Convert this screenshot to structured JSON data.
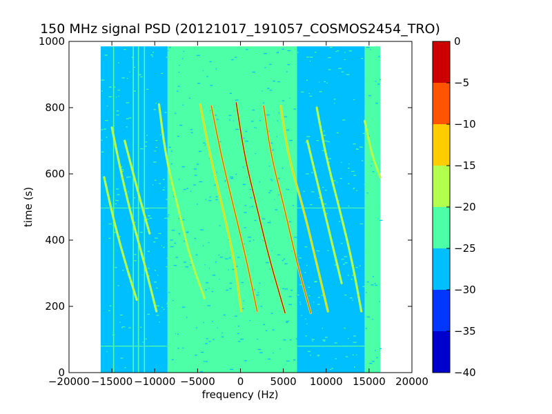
{
  "chart_data": {
    "type": "heatmap",
    "title": "150 MHz signal PSD (20121017_191057_COSMOS2454_TRO)",
    "xlabel": "frequency (Hz)",
    "ylabel": "time (s)",
    "xlim": [
      -20000,
      20000
    ],
    "ylim": [
      0,
      1000
    ],
    "xticks": [
      -20000,
      -15000,
      -10000,
      -5000,
      0,
      5000,
      10000,
      15000,
      20000
    ],
    "xtick_labels": [
      "−20000",
      "−15000",
      "−10000",
      "−5000",
      "0",
      "5000",
      "10000",
      "15000",
      "20000"
    ],
    "yticks": [
      0,
      200,
      400,
      600,
      800,
      1000
    ],
    "ytick_labels": [
      "0",
      "200",
      "400",
      "600",
      "800",
      "1000"
    ],
    "data_extent": {
      "x": [
        -16300,
        16300
      ],
      "y": [
        0,
        985
      ]
    },
    "background_regions": [
      {
        "x": [
          -16300,
          -8500
        ],
        "level": -27,
        "note": "noise floor"
      },
      {
        "x": [
          -8500,
          6600
        ],
        "level": -22
      },
      {
        "x": [
          6600,
          14500
        ],
        "level": -27
      },
      {
        "x": [
          14500,
          16300
        ],
        "level": -22
      }
    ],
    "horizontal_lines": [
      {
        "y": 80,
        "level": -22
      },
      {
        "y": 497,
        "level": -22
      }
    ],
    "vertical_lines": [
      {
        "x": -14800,
        "level": -22
      },
      {
        "x": -12500,
        "level": -22
      },
      {
        "x": -11900,
        "level": -22
      },
      {
        "x": -11200,
        "level": -22
      }
    ],
    "traces": [
      {
        "points": [
          [
            -4700,
            810
          ],
          [
            -3500,
            650
          ],
          [
            -2100,
            500
          ],
          [
            -700,
            340
          ],
          [
            100,
            185
          ]
        ],
        "peak_level": -13
      },
      {
        "points": [
          [
            -3400,
            805
          ],
          [
            -2200,
            650
          ],
          [
            -800,
            500
          ],
          [
            700,
            340
          ],
          [
            1950,
            185
          ]
        ],
        "peak_level": -10
      },
      {
        "points": [
          [
            -500,
            815
          ],
          [
            500,
            650
          ],
          [
            1900,
            500
          ],
          [
            3400,
            340
          ],
          [
            5200,
            180
          ]
        ],
        "peak_level": -3
      },
      {
        "points": [
          [
            2700,
            805
          ],
          [
            3600,
            650
          ],
          [
            5100,
            500
          ],
          [
            6500,
            340
          ],
          [
            8200,
            180
          ]
        ],
        "peak_level": -10
      },
      {
        "points": [
          [
            4700,
            805
          ],
          [
            5600,
            650
          ],
          [
            7300,
            500
          ],
          [
            8800,
            340
          ],
          [
            10200,
            185
          ]
        ],
        "peak_level": -13
      },
      {
        "points": [
          [
            8900,
            800
          ],
          [
            10000,
            650
          ],
          [
            11500,
            500
          ],
          [
            13000,
            340
          ],
          [
            14100,
            185
          ]
        ],
        "peak_level": -17
      },
      {
        "points": [
          [
            -9500,
            810
          ],
          [
            -8700,
            650
          ],
          [
            -7300,
            500
          ],
          [
            -5800,
            340
          ],
          [
            -4200,
            225
          ]
        ],
        "peak_level": -20
      },
      {
        "points": [
          [
            -15900,
            590
          ],
          [
            -14700,
            450
          ],
          [
            -13300,
            320
          ],
          [
            -12100,
            220
          ]
        ],
        "peak_level": -17
      },
      {
        "points": [
          [
            -15000,
            740
          ],
          [
            -13900,
            600
          ],
          [
            -12600,
            460
          ],
          [
            -11200,
            330
          ],
          [
            -9800,
            185
          ]
        ],
        "peak_level": -17
      },
      {
        "points": [
          [
            -13500,
            700
          ],
          [
            -12000,
            550
          ],
          [
            -10600,
            420
          ]
        ],
        "peak_level": -20
      },
      {
        "points": [
          [
            14500,
            760
          ],
          [
            15300,
            660
          ],
          [
            16300,
            590
          ]
        ],
        "peak_level": -17
      },
      {
        "points": [
          [
            7800,
            700
          ],
          [
            9200,
            550
          ],
          [
            10600,
            400
          ],
          [
            11800,
            270
          ]
        ],
        "peak_level": -20
      }
    ],
    "colorbar": {
      "levels": [
        -40,
        -35,
        -30,
        -25,
        -20,
        -15,
        -10,
        -5,
        0
      ],
      "tick_labels": [
        "−40",
        "−35",
        "−30",
        "−25",
        "−20",
        "−15",
        "−10",
        "−5",
        "0"
      ],
      "colors": [
        "#0000cc",
        "#0036ff",
        "#00bfff",
        "#4dffa6",
        "#b2ff4d",
        "#ffcc00",
        "#ff5500",
        "#cc0000"
      ]
    },
    "grid": false
  }
}
